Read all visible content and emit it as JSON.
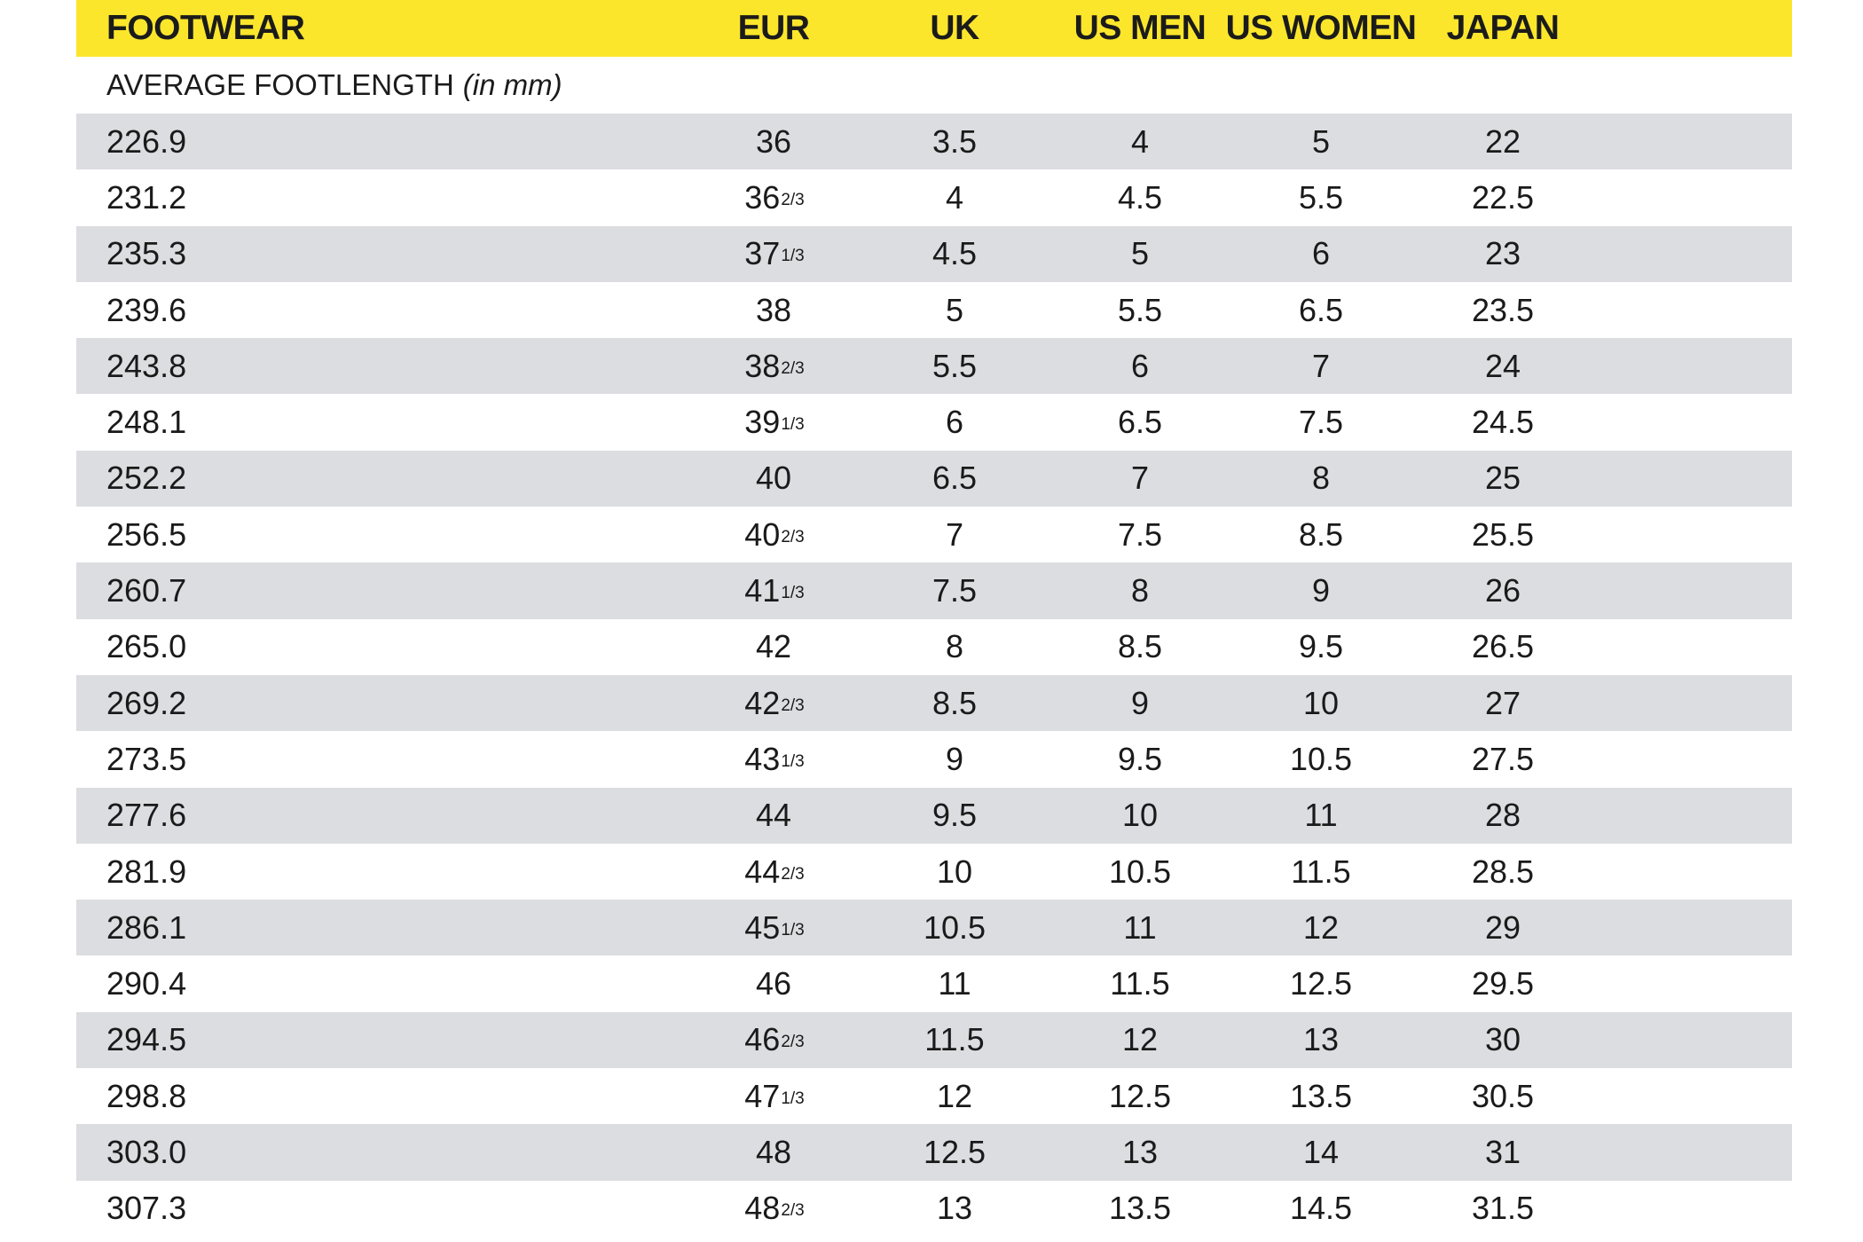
{
  "header": {
    "footwear": "FOOTWEAR",
    "eur": "EUR",
    "uk": "UK",
    "us_men": "US MEN",
    "us_women": "US WOMEN",
    "japan": "JAPAN"
  },
  "subheader": {
    "label": "AVERAGE FOOTLENGTH",
    "unit": "(in mm)"
  },
  "colors": {
    "header_bg": "#fbe62c",
    "zebra_bg": "#dcdde1"
  },
  "rows": [
    {
      "length": "226.9",
      "eur": "36",
      "eur_frac": "",
      "uk": "3.5",
      "us_men": "4",
      "us_women": "5",
      "japan": "22"
    },
    {
      "length": "231.2",
      "eur": "36",
      "eur_frac": "2/3",
      "uk": "4",
      "us_men": "4.5",
      "us_women": "5.5",
      "japan": "22.5"
    },
    {
      "length": "235.3",
      "eur": "37",
      "eur_frac": "1/3",
      "uk": "4.5",
      "us_men": "5",
      "us_women": "6",
      "japan": "23"
    },
    {
      "length": "239.6",
      "eur": "38",
      "eur_frac": "",
      "uk": "5",
      "us_men": "5.5",
      "us_women": "6.5",
      "japan": "23.5"
    },
    {
      "length": "243.8",
      "eur": "38",
      "eur_frac": "2/3",
      "uk": "5.5",
      "us_men": "6",
      "us_women": "7",
      "japan": "24"
    },
    {
      "length": "248.1",
      "eur": "39",
      "eur_frac": "1/3",
      "uk": "6",
      "us_men": "6.5",
      "us_women": "7.5",
      "japan": "24.5"
    },
    {
      "length": "252.2",
      "eur": "40",
      "eur_frac": "",
      "uk": "6.5",
      "us_men": "7",
      "us_women": "8",
      "japan": "25"
    },
    {
      "length": "256.5",
      "eur": "40",
      "eur_frac": "2/3",
      "uk": "7",
      "us_men": "7.5",
      "us_women": "8.5",
      "japan": "25.5"
    },
    {
      "length": "260.7",
      "eur": "41",
      "eur_frac": "1/3",
      "uk": "7.5",
      "us_men": "8",
      "us_women": "9",
      "japan": "26"
    },
    {
      "length": "265.0",
      "eur": "42",
      "eur_frac": "",
      "uk": "8",
      "us_men": "8.5",
      "us_women": "9.5",
      "japan": "26.5"
    },
    {
      "length": "269.2",
      "eur": "42",
      "eur_frac": "2/3",
      "uk": "8.5",
      "us_men": "9",
      "us_women": "10",
      "japan": "27"
    },
    {
      "length": "273.5",
      "eur": "43",
      "eur_frac": "1/3",
      "uk": "9",
      "us_men": "9.5",
      "us_women": "10.5",
      "japan": "27.5"
    },
    {
      "length": "277.6",
      "eur": "44",
      "eur_frac": "",
      "uk": "9.5",
      "us_men": "10",
      "us_women": "11",
      "japan": "28"
    },
    {
      "length": "281.9",
      "eur": "44",
      "eur_frac": "2/3",
      "uk": "10",
      "us_men": "10.5",
      "us_women": "11.5",
      "japan": "28.5"
    },
    {
      "length": "286.1",
      "eur": "45",
      "eur_frac": "1/3",
      "uk": "10.5",
      "us_men": "11",
      "us_women": "12",
      "japan": "29"
    },
    {
      "length": "290.4",
      "eur": "46",
      "eur_frac": "",
      "uk": "11",
      "us_men": "11.5",
      "us_women": "12.5",
      "japan": "29.5"
    },
    {
      "length": "294.5",
      "eur": "46",
      "eur_frac": "2/3",
      "uk": "11.5",
      "us_men": "12",
      "us_women": "13",
      "japan": "30"
    },
    {
      "length": "298.8",
      "eur": "47",
      "eur_frac": "1/3",
      "uk": "12",
      "us_men": "12.5",
      "us_women": "13.5",
      "japan": "30.5"
    },
    {
      "length": "303.0",
      "eur": "48",
      "eur_frac": "",
      "uk": "12.5",
      "us_men": "13",
      "us_women": "14",
      "japan": "31"
    },
    {
      "length": "307.3",
      "eur": "48",
      "eur_frac": "2/3",
      "uk": "13",
      "us_men": "13.5",
      "us_women": "14.5",
      "japan": "31.5"
    }
  ]
}
